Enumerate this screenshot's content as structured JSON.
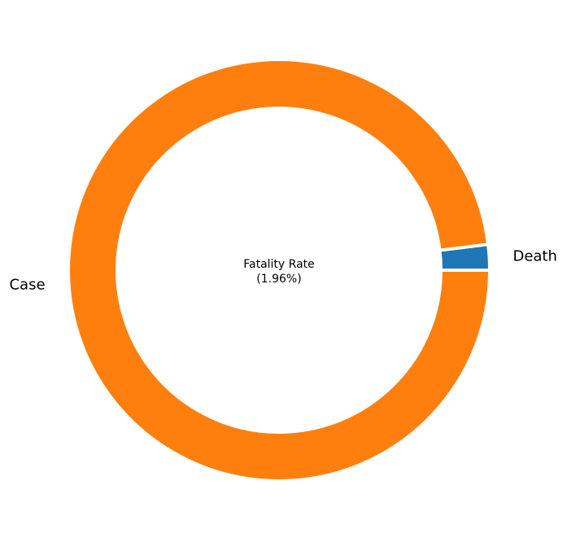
{
  "chart_data": {
    "type": "pie",
    "style": "donut",
    "slices": [
      {
        "label": "Death",
        "value": 1.96,
        "color": "#1f77b4"
      },
      {
        "label": "Case",
        "value": 98.04,
        "color": "#ff7f0e"
      }
    ],
    "center_text": {
      "line1": "Fatality Rate",
      "line2": "(1.96%)"
    },
    "start_angle_deg": 0,
    "direction": "counterclockwise"
  }
}
